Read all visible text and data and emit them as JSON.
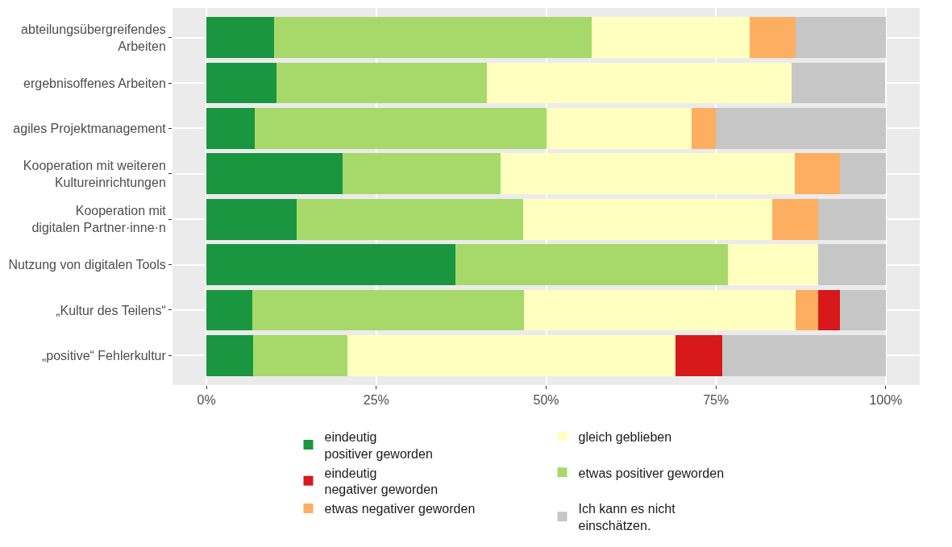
{
  "chart_data": {
    "type": "bar",
    "orientation": "horizontal",
    "stacked": true,
    "categories": [
      "abteilungsübergreifendes\nArbeiten",
      "ergebnisoffenes Arbeiten",
      "agiles Projektmanagement",
      "Kooperation mit weiteren\nKultureinrichtungen",
      "Kooperation mit\ndigitalen Partner·inne·n",
      "Nutzung von digitalen Tools",
      "„Kultur des Teilens“",
      "„positive“ Fehlerkultur"
    ],
    "series": [
      {
        "name": "eindeutig\npositiver geworden",
        "color": "#1a9641",
        "values": [
          10.0,
          10.3,
          7.1,
          20.0,
          13.3,
          36.7,
          6.7,
          6.9
        ]
      },
      {
        "name": "etwas positiver geworden",
        "color": "#a6d96a",
        "values": [
          46.7,
          31.0,
          42.9,
          23.3,
          33.3,
          40.0,
          40.0,
          13.8
        ]
      },
      {
        "name": "gleich geblieben",
        "color": "#ffffbf",
        "values": [
          23.3,
          44.8,
          21.4,
          43.3,
          36.7,
          13.3,
          40.0,
          48.3
        ]
      },
      {
        "name": "etwas negativer geworden",
        "color": "#fdae61",
        "values": [
          6.7,
          null,
          3.6,
          6.7,
          6.7,
          null,
          3.3,
          null
        ]
      },
      {
        "name": "eindeutig\nnegativer geworden",
        "color": "#d7191c",
        "values": [
          null,
          null,
          null,
          null,
          null,
          null,
          3.3,
          6.9
        ]
      },
      {
        "name": "Ich kann es nicht\neinschätzen.",
        "color": "#c6c6c6",
        "values": [
          13.3,
          13.8,
          25.0,
          6.7,
          10.0,
          10.0,
          6.7,
          24.1
        ]
      }
    ],
    "xlim": [
      -5,
      105
    ],
    "xticks": [
      {
        "value": 0,
        "label": "0%"
      },
      {
        "value": 25,
        "label": "25%"
      },
      {
        "value": 50,
        "label": "50%"
      },
      {
        "value": 75,
        "label": "75%"
      },
      {
        "value": 100,
        "label": "100%"
      }
    ],
    "grid": true,
    "legend": "bottom"
  }
}
